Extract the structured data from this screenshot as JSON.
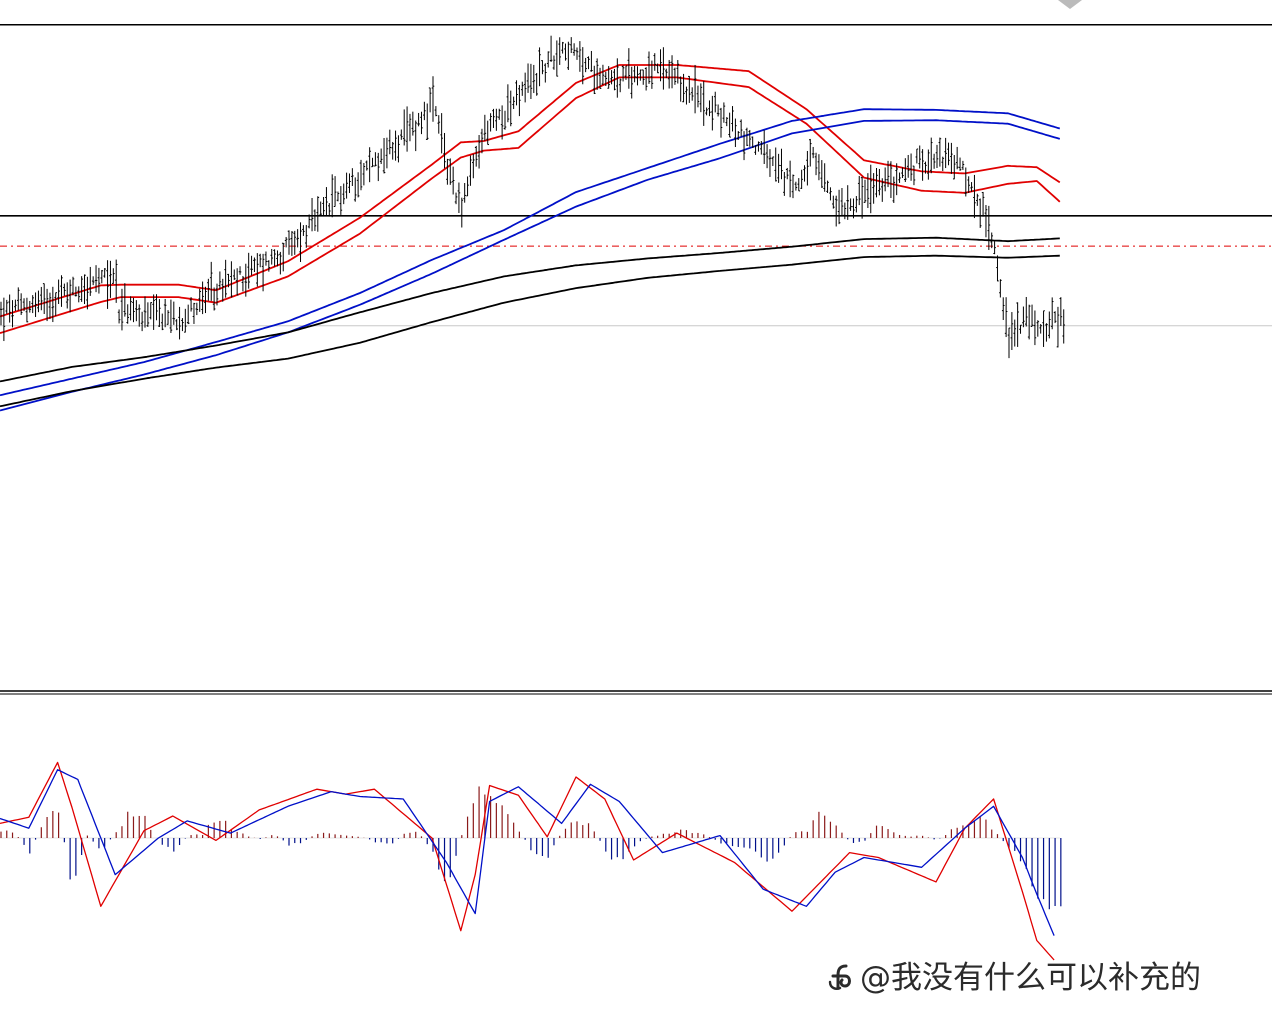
{
  "watermark": {
    "text": "@我没有什么可以补充的"
  },
  "colors": {
    "candle": "#000000",
    "ema_fast": "#e00000",
    "ema_mid": "#0010c8",
    "ema_slow": "#000000",
    "macd_up": "#8b1a1a",
    "macd_down": "#00108a",
    "signal_red": "#e00000",
    "signal_blue": "#0010c8",
    "level_dash": "#e00000",
    "level_line": "#000000",
    "current_price": "#c8c8c8"
  },
  "chart_data": [
    {
      "type": "candlestick",
      "title": "",
      "xlabel": "",
      "ylabel": "",
      "ylim": [
        0,
        1000
      ],
      "grid": false,
      "axis_labels_shown": false,
      "horizontal_levels": [
        {
          "value": 964.2,
          "style": "solid",
          "color": "#000000"
        },
        {
          "value": 687.7,
          "style": "solid",
          "color": "#000000"
        },
        {
          "value": 643.9,
          "style": "dash-dot",
          "color": "#e00000"
        },
        {
          "value": 528.6,
          "style": "solid",
          "color": "#c8c8c8"
        }
      ],
      "price_path": {
        "bars": 370,
        "anchor_bar": [
          0,
          40,
          22,
          35,
          42,
          50,
          62,
          75,
          100,
          125,
          140,
          150,
          155,
          160,
          168,
          180,
          195,
          205,
          215,
          228,
          245,
          262,
          275,
          282,
          290,
          300,
          310,
          325,
          333,
          340,
          345,
          348,
          350,
          355,
          360,
          368
        ],
        "anchor_mid": [
          545,
          600,
          580,
          530,
          555,
          540,
          540,
          580,
          640,
          750,
          800,
          850,
          760,
          700,
          810,
          860,
          935,
          900,
          885,
          900,
          850,
          790,
          730,
          770,
          700,
          720,
          740,
          780,
          760,
          700,
          650,
          560,
          510,
          540,
          525,
          540
        ]
      },
      "series": [
        {
          "name": "",
          "role": "fast-ma-upper",
          "color": "#e00000",
          "x": [
            0,
            35,
            42,
            62,
            75,
            100,
            125,
            150,
            160,
            168,
            180,
            200,
            215,
            235,
            260,
            280,
            300,
            320,
            335,
            350,
            360,
            368
          ],
          "y": [
            542,
            587,
            588,
            588,
            580,
            622,
            685,
            762,
            794,
            796,
            810,
            880,
            906,
            906,
            897,
            842,
            768,
            752,
            749,
            760,
            758,
            736
          ]
        },
        {
          "name": "",
          "role": "fast-ma-lower",
          "color": "#e00000",
          "x": [
            0,
            35,
            42,
            62,
            75,
            100,
            125,
            150,
            160,
            168,
            180,
            200,
            215,
            235,
            260,
            280,
            300,
            320,
            335,
            350,
            360,
            368
          ],
          "y": [
            518,
            563,
            570,
            570,
            562,
            600,
            662,
            742,
            772,
            782,
            786,
            858,
            888,
            888,
            874,
            821,
            743,
            724,
            721,
            734,
            738,
            708
          ]
        },
        {
          "name": "",
          "role": "mid-ma-upper",
          "color": "#0010c8",
          "x": [
            0,
            25,
            50,
            75,
            100,
            125,
            150,
            175,
            200,
            225,
            250,
            275,
            300,
            325,
            350,
            368
          ],
          "y": [
            428,
            452,
            476,
            505,
            535,
            576,
            624,
            667,
            722,
            757,
            792,
            825,
            842,
            841,
            836,
            814
          ]
        },
        {
          "name": "",
          "role": "mid-ma-lower",
          "color": "#0010c8",
          "x": [
            0,
            25,
            50,
            75,
            100,
            125,
            150,
            175,
            200,
            225,
            250,
            275,
            300,
            325,
            350,
            368
          ],
          "y": [
            406,
            433,
            458,
            486,
            519,
            559,
            604,
            653,
            701,
            740,
            771,
            807,
            825,
            826,
            821,
            799
          ]
        },
        {
          "name": "",
          "role": "slow-ma-upper",
          "color": "#000000",
          "x": [
            0,
            25,
            50,
            75,
            100,
            125,
            150,
            175,
            200,
            225,
            250,
            275,
            300,
            325,
            350,
            368
          ],
          "y": [
            448,
            469,
            483,
            500,
            519,
            548,
            576,
            600,
            616,
            626,
            634,
            643,
            654,
            656,
            651,
            655
          ]
        },
        {
          "name": "",
          "role": "slow-ma-lower",
          "color": "#000000",
          "x": [
            0,
            25,
            50,
            75,
            100,
            125,
            150,
            175,
            200,
            225,
            250,
            275,
            300,
            325,
            350,
            368
          ],
          "y": [
            412,
            434,
            452,
            468,
            481,
            504,
            534,
            562,
            583,
            598,
            608,
            617,
            628,
            630,
            627,
            630
          ]
        }
      ]
    },
    {
      "type": "histogram+line",
      "title": "",
      "xlabel": "",
      "ylabel": "",
      "ylim": [
        -1000,
        1000
      ],
      "grid": false,
      "axis_labels_shown": false,
      "zero_line": 0,
      "histogram": {
        "x": [
          0,
          5,
          10,
          15,
          20,
          25,
          30,
          35,
          40,
          45,
          50,
          55,
          60,
          65,
          70,
          75,
          80,
          85,
          90,
          95,
          100,
          105,
          110,
          115,
          120,
          125,
          130,
          135,
          140,
          145,
          150,
          155,
          160,
          165,
          170,
          175,
          180,
          185,
          190,
          195,
          200,
          205,
          210,
          215,
          220,
          225,
          230,
          235,
          240,
          245,
          250,
          255,
          260,
          265,
          270,
          275,
          280,
          285,
          290,
          295,
          300,
          305,
          310,
          315,
          320,
          325,
          330,
          335,
          340,
          345,
          350,
          355,
          360,
          365
        ],
        "values": [
          60,
          40,
          -120,
          150,
          220,
          -420,
          20,
          -110,
          50,
          220,
          160,
          -40,
          -100,
          20,
          30,
          180,
          90,
          20,
          -10,
          30,
          -60,
          -30,
          40,
          30,
          20,
          10,
          -30,
          -60,
          30,
          50,
          -120,
          -380,
          20,
          370,
          300,
          260,
          50,
          -120,
          -160,
          60,
          150,
          90,
          -100,
          -220,
          -60,
          10,
          30,
          60,
          50,
          20,
          -40,
          -60,
          -100,
          -180,
          -120,
          40,
          50,
          250,
          100,
          -40,
          -20,
          120,
          40,
          10,
          20,
          -20,
          60,
          120,
          170,
          60,
          -80,
          -200,
          -440,
          -620
        ]
      },
      "series": [
        {
          "name": "",
          "role": "signal-line",
          "color": "#e00000",
          "x": [
            0,
            10,
            20,
            25,
            35,
            50,
            60,
            75,
            90,
            110,
            120,
            130,
            150,
            160,
            165,
            170,
            180,
            190,
            200,
            210,
            220,
            235,
            255,
            265,
            275,
            285,
            295,
            305,
            325,
            335,
            345,
            355,
            360,
            366
          ],
          "y": [
            120,
            170,
            620,
            250,
            -560,
            60,
            180,
            -20,
            230,
            400,
            360,
            400,
            0,
            -760,
            -300,
            430,
            350,
            10,
            500,
            320,
            -180,
            40,
            -200,
            -400,
            -600,
            -360,
            -120,
            -160,
            -360,
            80,
            320,
            -440,
            -840,
            -1000
          ]
        },
        {
          "name": "",
          "role": "macd-line",
          "color": "#0010c8",
          "x": [
            0,
            10,
            20,
            27,
            40,
            55,
            65,
            80,
            100,
            115,
            125,
            140,
            155,
            165,
            170,
            180,
            195,
            205,
            215,
            230,
            250,
            265,
            280,
            290,
            300,
            320,
            335,
            345,
            355,
            360,
            366
          ],
          "y": [
            160,
            80,
            560,
            480,
            -300,
            0,
            140,
            40,
            260,
            380,
            340,
            320,
            -200,
            -620,
            300,
            420,
            120,
            440,
            300,
            -120,
            20,
            -420,
            -560,
            -280,
            -160,
            -240,
            80,
            260,
            -160,
            -460,
            -800
          ]
        }
      ]
    }
  ]
}
